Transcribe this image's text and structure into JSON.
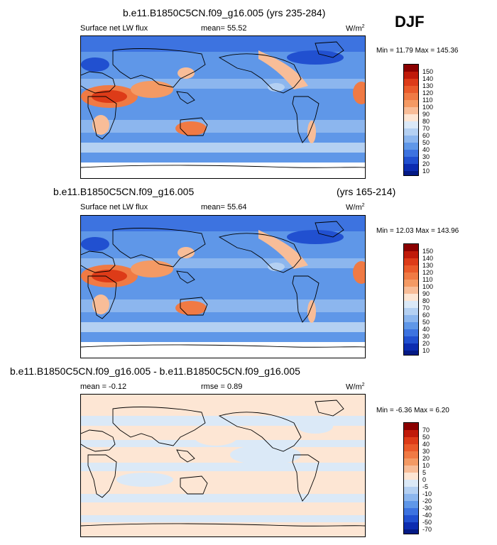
{
  "season": "DJF",
  "panels": [
    {
      "title": "b.e11.B1850C5CN.f09_g16.005 (yrs 235-284)",
      "title_right": "",
      "left_label": "Surface net LW flux",
      "center_label": "mean=  55.52",
      "units": "W/m",
      "units_sup": "2",
      "minmax": "Min =  11.79 Max = 145.36",
      "colorbar_labels": [
        "150",
        "140",
        "130",
        "120",
        "110",
        "100",
        "90",
        "80",
        "70",
        "60",
        "50",
        "40",
        "30",
        "20",
        "10"
      ],
      "colors": [
        "#8b0000",
        "#c01a0a",
        "#dd3b18",
        "#ea5a2a",
        "#f07a44",
        "#f49a64",
        "#f8bd98",
        "#fde6d4",
        "#dbe9f7",
        "#b4d0f2",
        "#8cb6ee",
        "#5f97e8",
        "#3d73e0",
        "#2150d0",
        "#0c2cb0",
        "#041a85"
      ]
    },
    {
      "title": "b.e11.B1850C5CN.f09_g16.005",
      "title_right": "(yrs 165-214)",
      "left_label": "Surface net LW flux",
      "center_label": "mean=  55.64",
      "units": "W/m",
      "units_sup": "2",
      "minmax": "Min =  12.03 Max = 143.96",
      "colorbar_labels": [
        "150",
        "140",
        "130",
        "120",
        "110",
        "100",
        "90",
        "80",
        "70",
        "60",
        "50",
        "40",
        "30",
        "20",
        "10"
      ],
      "colors": [
        "#8b0000",
        "#c01a0a",
        "#dd3b18",
        "#ea5a2a",
        "#f07a44",
        "#f49a64",
        "#f8bd98",
        "#fde6d4",
        "#dbe9f7",
        "#b4d0f2",
        "#8cb6ee",
        "#5f97e8",
        "#3d73e0",
        "#2150d0",
        "#0c2cb0",
        "#041a85"
      ]
    },
    {
      "title": "b.e11.B1850C5CN.f09_g16.005 - b.e11.B1850C5CN.f09_g16.005",
      "title_right": "",
      "left_label": "mean =  -0.12",
      "center_label": "rmse =   0.89",
      "units": "W/m",
      "units_sup": "2",
      "minmax": "Min =  -6.36 Max =   6.20",
      "colorbar_labels": [
        "70",
        "50",
        "40",
        "30",
        "20",
        "10",
        "5",
        "0",
        "-5",
        "-10",
        "-20",
        "-30",
        "-40",
        "-50",
        "-70"
      ],
      "colors": [
        "#8b0000",
        "#c01a0a",
        "#dd3b18",
        "#ea5a2a",
        "#f07a44",
        "#f49a64",
        "#f8bd98",
        "#fde6d4",
        "#dbe9f7",
        "#b4d0f2",
        "#8cb6ee",
        "#5f97e8",
        "#3d73e0",
        "#2150d0",
        "#0c2cb0",
        "#041a85"
      ]
    }
  ]
}
